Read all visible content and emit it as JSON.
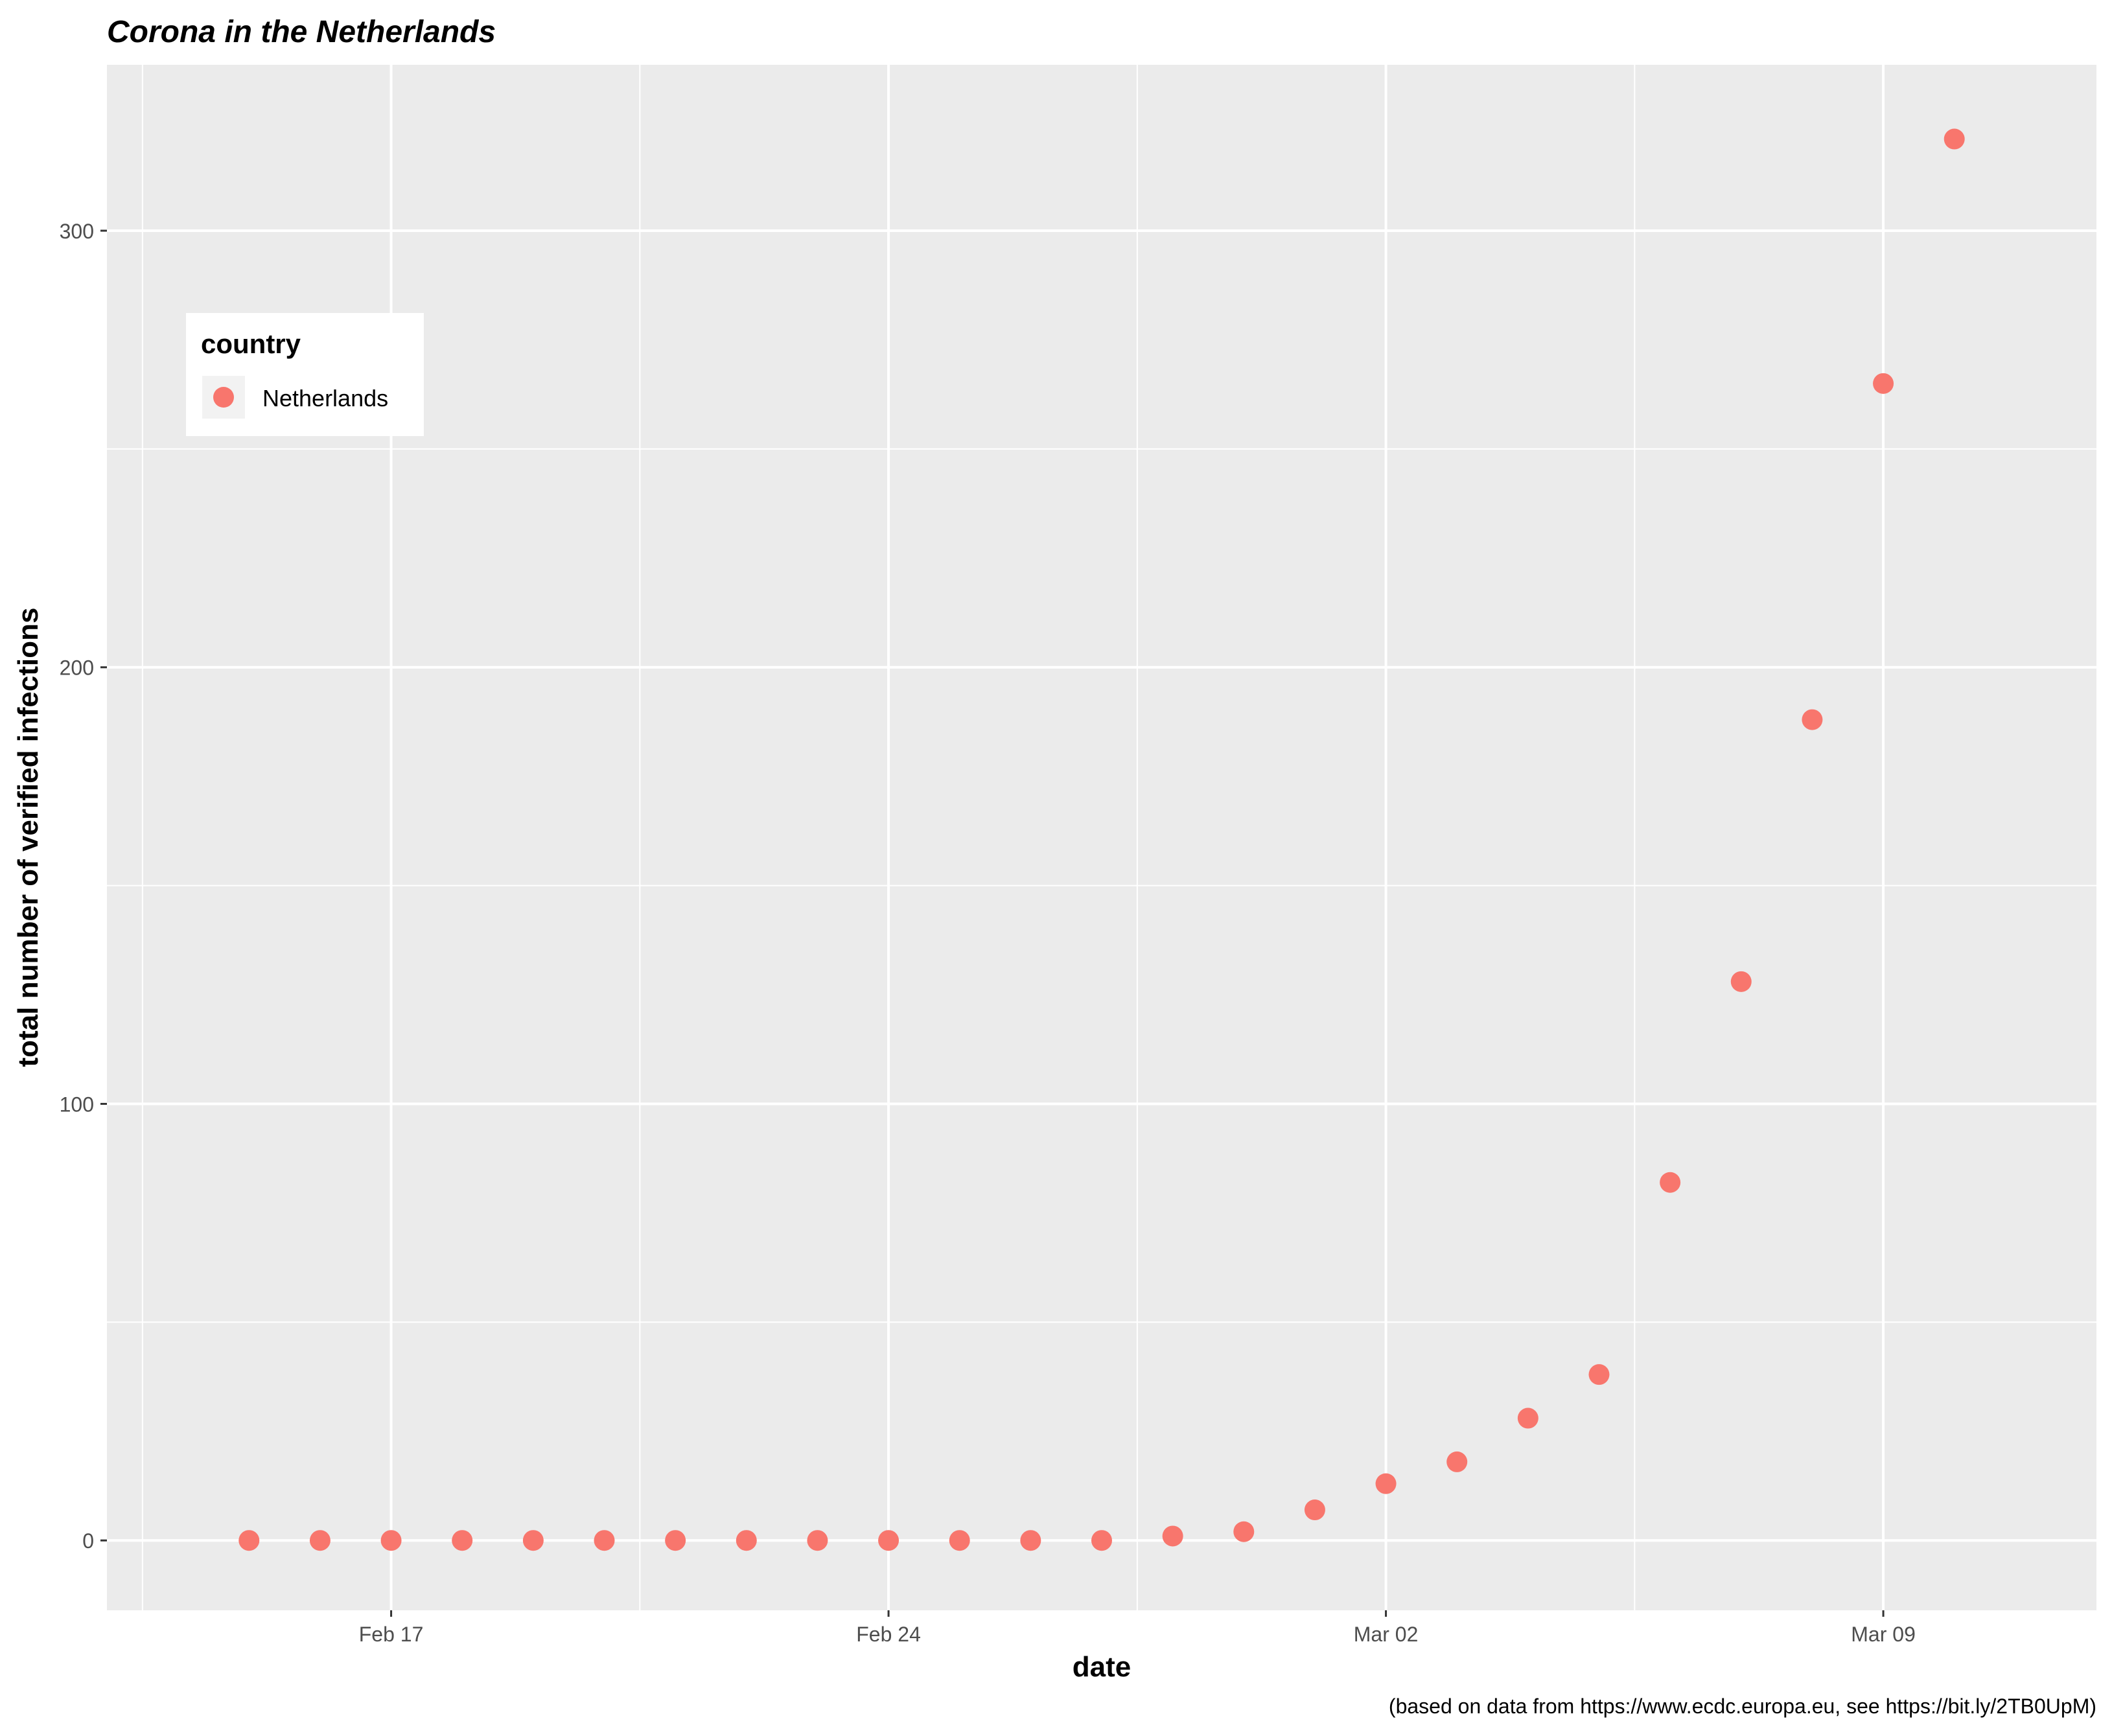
{
  "chart_data": {
    "type": "scatter",
    "title": "Corona in the Netherlands",
    "xlabel": "date",
    "ylabel": "total number of verified infections",
    "caption": "(based on data from https://www.ecdc.europa.eu, see https://bit.ly/2TB0UpM)",
    "legend": {
      "title": "country",
      "position": "top-left",
      "items": [
        "Netherlands"
      ]
    },
    "x_ticks": [
      {
        "date": "2020-02-17",
        "label": "Feb 17"
      },
      {
        "date": "2020-02-24",
        "label": "Feb 24"
      },
      {
        "date": "2020-03-02",
        "label": "Mar 02"
      },
      {
        "date": "2020-03-09",
        "label": "Mar 09"
      }
    ],
    "y_ticks": [
      0,
      100,
      200,
      300
    ],
    "xlim": [
      "2020-02-13",
      "2020-03-12"
    ],
    "ylim": [
      -16,
      338
    ],
    "grid": true,
    "colors": {
      "point": "#F8766D",
      "panel": "#EBEBEB",
      "grid": "#FFFFFF"
    },
    "series": [
      {
        "name": "Netherlands",
        "x": [
          "2020-02-15",
          "2020-02-16",
          "2020-02-17",
          "2020-02-18",
          "2020-02-19",
          "2020-02-20",
          "2020-02-21",
          "2020-02-22",
          "2020-02-23",
          "2020-02-24",
          "2020-02-25",
          "2020-02-26",
          "2020-02-27",
          "2020-02-28",
          "2020-02-29",
          "2020-03-01",
          "2020-03-02",
          "2020-03-03",
          "2020-03-04",
          "2020-03-05",
          "2020-03-06",
          "2020-03-07",
          "2020-03-08",
          "2020-03-09",
          "2020-03-10"
        ],
        "y": [
          0,
          0,
          0,
          0,
          0,
          0,
          0,
          0,
          0,
          0,
          0,
          0,
          0,
          1,
          2,
          7,
          13,
          18,
          28,
          38,
          82,
          128,
          188,
          265,
          321
        ]
      }
    ]
  }
}
